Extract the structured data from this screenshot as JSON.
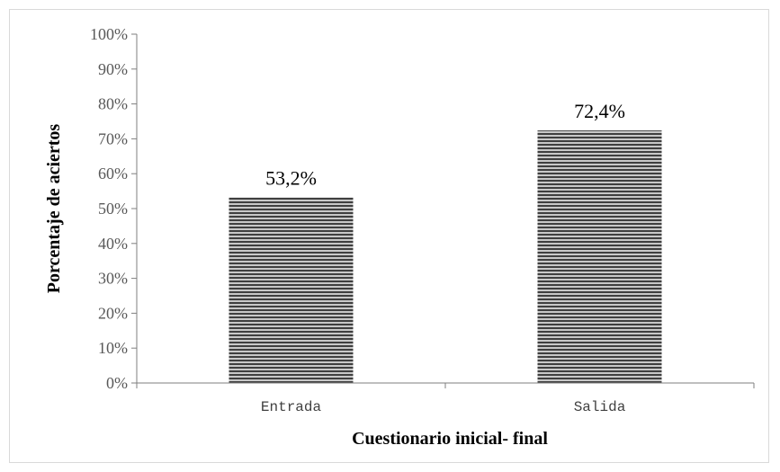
{
  "chart_data": {
    "type": "bar",
    "categories": [
      "Entrada",
      "Salida"
    ],
    "values": [
      53.2,
      72.4
    ],
    "data_labels": [
      "53,2%",
      "72,4%"
    ],
    "title": "",
    "xlabel": "Cuestionario inicial- final",
    "ylabel": "Porcentaje de aciertos",
    "ylim": [
      0,
      100
    ],
    "yticks": [
      0,
      10,
      20,
      30,
      40,
      50,
      60,
      70,
      80,
      90,
      100
    ],
    "ytick_labels": [
      "0%",
      "10%",
      "20%",
      "30%",
      "40%",
      "50%",
      "60%",
      "70%",
      "80%",
      "90%",
      "100%"
    ],
    "grid": false,
    "legend": "none",
    "bar_fill": "horizontal-stripes",
    "colors": {
      "stripe_dark": "#3f3f3f",
      "stripe_light": "#c8c8c8",
      "axis": "#7f7f7f"
    }
  }
}
